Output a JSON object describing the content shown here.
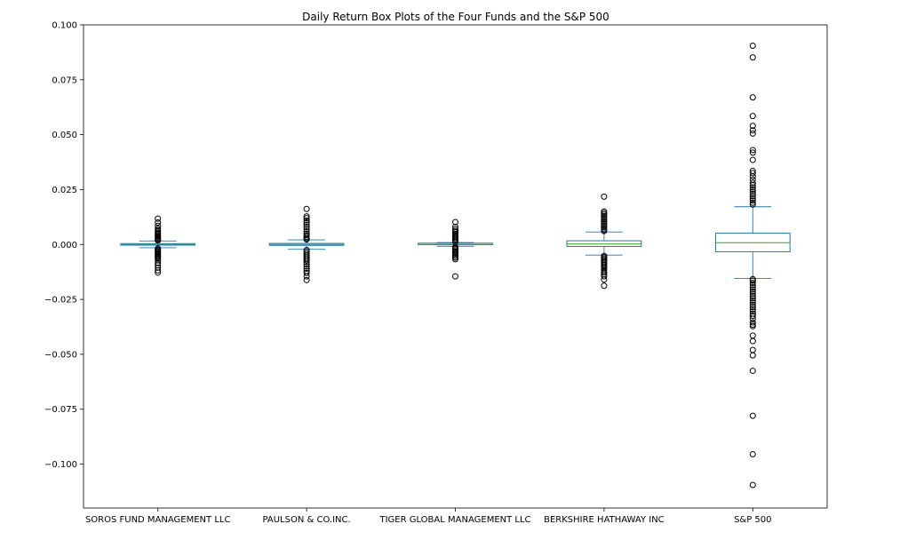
{
  "chart_data": {
    "type": "box",
    "title": "Daily Return Box Plots of the Four Funds and the S&P 500",
    "xlabel": "",
    "ylabel": "",
    "ylim": [
      -0.12,
      0.1
    ],
    "yticks": [
      0.1,
      0.075,
      0.05,
      0.025,
      0.0,
      -0.025,
      -0.05,
      -0.075,
      -0.1
    ],
    "ytick_labels": [
      "0.100",
      "0.075",
      "0.050",
      "0.025",
      "0.000",
      "−0.025",
      "−0.050",
      "−0.075",
      "−0.100"
    ],
    "grid": false,
    "colors": {
      "box": "#1f77b4",
      "whisker": "#1f77b4",
      "median": "#2ca02c",
      "flier": "#000000",
      "axes": "#000000"
    },
    "categories": [
      "SOROS FUND MANAGEMENT LLC",
      "PAULSON & CO.INC.",
      "TIGER GLOBAL MANAGEMENT LLC",
      "BERKSHIRE HATHAWAY INC",
      "S&P 500"
    ],
    "boxes": [
      {
        "name": "SOROS FUND MANAGEMENT LLC",
        "whislo": -0.0015,
        "q1": -0.0003,
        "med": 0.0,
        "q3": 0.0004,
        "whishi": 0.0016,
        "fliers": [
          0.0118,
          0.01,
          0.0085,
          0.0072,
          0.0065,
          0.0058,
          0.0052,
          0.0047,
          0.0042,
          0.0037,
          0.0032,
          0.0027,
          0.0022,
          0.0018,
          -0.0018,
          -0.0023,
          -0.0028,
          -0.0033,
          -0.0038,
          -0.0043,
          -0.0048,
          -0.0053,
          -0.0058,
          -0.0065,
          -0.0072,
          -0.0085,
          -0.0095,
          -0.0105,
          -0.0118,
          -0.0128
        ]
      },
      {
        "name": "PAULSON & CO.INC.",
        "whislo": -0.0022,
        "q1": -0.0004,
        "med": 0.0,
        "q3": 0.0005,
        "whishi": 0.0021,
        "fliers": [
          0.0162,
          0.0128,
          0.012,
          0.011,
          0.01,
          0.009,
          0.008,
          0.007,
          0.006,
          0.005,
          0.0042,
          0.0035,
          0.0028,
          0.0023,
          -0.0025,
          -0.0032,
          -0.004,
          -0.0048,
          -0.0056,
          -0.0064,
          -0.0072,
          -0.008,
          -0.009,
          -0.01,
          -0.011,
          -0.012,
          -0.013,
          -0.0145,
          -0.0162
        ]
      },
      {
        "name": "TIGER GLOBAL MANAGEMENT LLC",
        "whislo": -0.0008,
        "q1": -0.0001,
        "med": 0.0,
        "q3": 0.0006,
        "whishi": 0.0009,
        "fliers": [
          0.0102,
          0.008,
          0.007,
          0.0062,
          0.0055,
          0.0048,
          0.0042,
          0.0036,
          0.003,
          0.0024,
          0.0018,
          0.0012,
          -0.0011,
          -0.0016,
          -0.0021,
          -0.0027,
          -0.0033,
          -0.0039,
          -0.0046,
          -0.0053,
          -0.006,
          -0.0067,
          -0.0145
        ]
      },
      {
        "name": "BERKSHIRE HATHAWAY INC",
        "whislo": -0.0048,
        "q1": -0.0009,
        "med": 0.0002,
        "q3": 0.0017,
        "whishi": 0.0057,
        "fliers": [
          0.0218,
          0.015,
          0.0143,
          0.0136,
          0.0129,
          0.0122,
          0.0115,
          0.0108,
          0.0101,
          0.0094,
          0.0087,
          0.008,
          0.0073,
          0.0066,
          0.0061,
          -0.0052,
          -0.0058,
          -0.0064,
          -0.007,
          -0.0076,
          -0.0082,
          -0.0088,
          -0.0094,
          -0.01,
          -0.0106,
          -0.0112,
          -0.012,
          -0.0128,
          -0.0136,
          -0.0145,
          -0.016,
          -0.0188
        ]
      },
      {
        "name": "S&P 500",
        "whislo": -0.0155,
        "q1": -0.0033,
        "med": 0.0008,
        "q3": 0.0052,
        "whishi": 0.0172,
        "fliers": [
          0.0905,
          0.0852,
          0.067,
          0.0585,
          0.054,
          0.052,
          0.0505,
          0.043,
          0.0418,
          0.0385,
          0.0335,
          0.0325,
          0.031,
          0.0295,
          0.028,
          0.027,
          0.026,
          0.025,
          0.024,
          0.023,
          0.022,
          0.021,
          0.02,
          0.019,
          0.0182,
          -0.0158,
          -0.0165,
          -0.0175,
          -0.0185,
          -0.0195,
          -0.0205,
          -0.0215,
          -0.0225,
          -0.0235,
          -0.0245,
          -0.0255,
          -0.0265,
          -0.0275,
          -0.0285,
          -0.0295,
          -0.0305,
          -0.0315,
          -0.0325,
          -0.0338,
          -0.0355,
          -0.0365,
          -0.0372,
          -0.0415,
          -0.044,
          -0.048,
          -0.0505,
          -0.0575,
          -0.078,
          -0.0955,
          -0.1095
        ]
      }
    ]
  }
}
